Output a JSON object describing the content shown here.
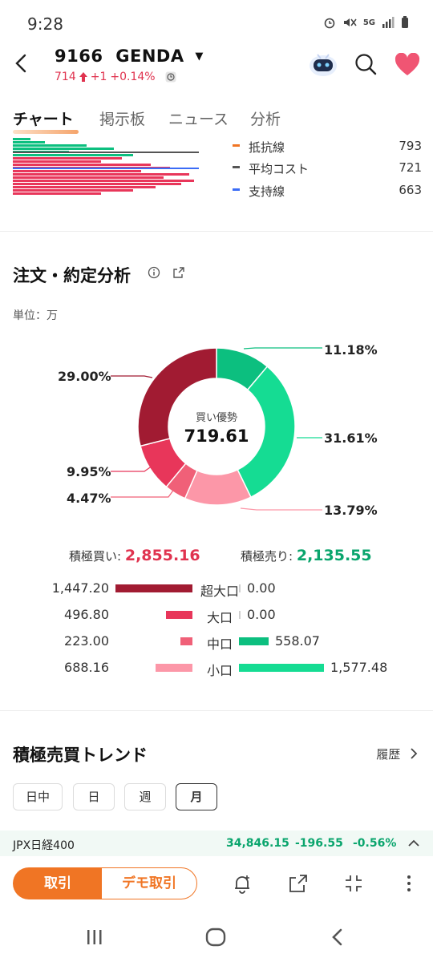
{
  "status": {
    "time": "9:28",
    "network": "5G"
  },
  "header": {
    "code": "9166",
    "name": "GENDA",
    "price": "714",
    "change": "+1",
    "change_pct": "+0.14%"
  },
  "tabs": [
    "チャート",
    "掲示板",
    "ニュース",
    "分析"
  ],
  "chart_legend": [
    {
      "label": "抵抗線",
      "value": "793",
      "color": "#f07524"
    },
    {
      "label": "平均コスト",
      "value": "721",
      "color": "#555555"
    },
    {
      "label": "支持線",
      "value": "663",
      "color": "#3b6cf6"
    }
  ],
  "order_analysis": {
    "title": "注文・約定分析",
    "unit": "単位：万",
    "center_label": "買い優勢",
    "center_value": "719.61",
    "buy_label": "積極買い:",
    "buy_value": "2,855.16",
    "sell_label": "積極売り:",
    "sell_value": "2,135.55"
  },
  "chart_data": {
    "type": "pie",
    "title": "",
    "slices": [
      {
        "label": "11.18%",
        "value": 11.18,
        "color": "#0cbf7f"
      },
      {
        "label": "31.61%",
        "value": 31.61,
        "color": "#15dc93"
      },
      {
        "label": "13.79%",
        "value": 13.79,
        "color": "#fc97a8"
      },
      {
        "label": "4.47%",
        "value": 4.47,
        "color": "#f06078"
      },
      {
        "label": "9.95%",
        "value": 9.95,
        "color": "#e8365a"
      },
      {
        "label": "29.00%",
        "value": 29.0,
        "color": "#a11b32"
      }
    ]
  },
  "breakdown": [
    {
      "category": "超大口",
      "buy": "1,447.20",
      "sell": "0.00",
      "buy_num": 1447.2,
      "sell_num": 0,
      "buy_color": "#a11b32",
      "sell_color": "#0cbf7f"
    },
    {
      "category": "大口",
      "buy": "496.80",
      "sell": "0.00",
      "buy_num": 496.8,
      "sell_num": 0,
      "buy_color": "#e8365a",
      "sell_color": "#15dc93"
    },
    {
      "category": "中口",
      "buy": "223.00",
      "sell": "558.07",
      "buy_num": 223.0,
      "sell_num": 558.07,
      "buy_color": "#f06078",
      "sell_color": "#0cbf7f"
    },
    {
      "category": "小口",
      "buy": "688.16",
      "sell": "1,577.48",
      "buy_num": 688.16,
      "sell_num": 1577.48,
      "buy_color": "#fc97a8",
      "sell_color": "#15dc93"
    }
  ],
  "trend": {
    "title": "積極売買トレンド",
    "history_label": "履歴",
    "periods": [
      "日中",
      "日",
      "週",
      "月"
    ],
    "selected_period": "月"
  },
  "index_ticker": {
    "name": "JPX日経400",
    "value": "34,846.15",
    "change": "-196.55",
    "change_pct": "-0.56%"
  },
  "bottom": {
    "trade_label": "取引",
    "demo_label": "デモ取引"
  }
}
